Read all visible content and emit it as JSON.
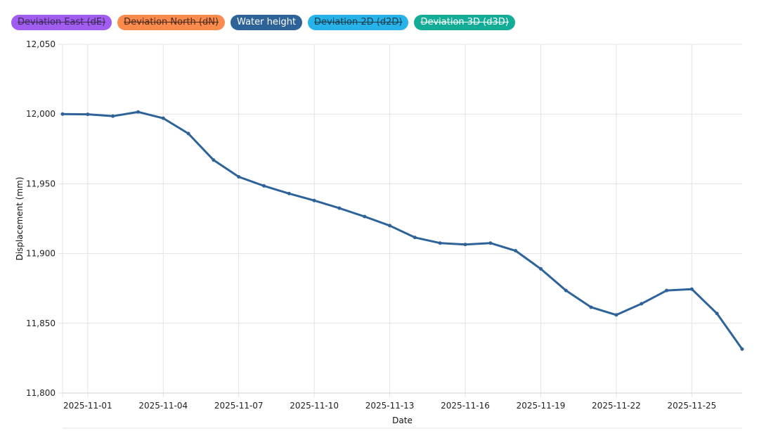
{
  "legend": [
    {
      "label": "Deviation East (dE)",
      "color": "#a15cf0",
      "text": "#3a2a55",
      "hidden": true
    },
    {
      "label": "Deviation North (dN)",
      "color": "#fb8a4d",
      "text": "#4a2a1a",
      "hidden": true
    },
    {
      "label": "Water height",
      "color": "#2e6399",
      "text": "#ffffff",
      "hidden": false
    },
    {
      "label": "Deviation 2D (d2D)",
      "color": "#27b3ea",
      "text": "#1a3a4a",
      "hidden": true
    },
    {
      "label": "Deviation 3D (d3D)",
      "color": "#13ac97",
      "text": "#ffffff",
      "hidden": true
    }
  ],
  "chart_data": {
    "type": "line",
    "xlabel": "Date",
    "ylabel": "Displacement (mm)",
    "ylim": [
      11800,
      12050
    ],
    "yticks": [
      "11,800",
      "11,850",
      "11,900",
      "11,950",
      "12,000",
      "12,050"
    ],
    "xrange": [
      "2025-10-31",
      "2025-11-27"
    ],
    "xticks": [
      "2025-11-01",
      "2025-11-04",
      "2025-11-07",
      "2025-11-10",
      "2025-11-13",
      "2025-11-16",
      "2025-11-19",
      "2025-11-22",
      "2025-11-25"
    ],
    "grid": true,
    "legend_position": "top-left",
    "series": [
      {
        "name": "Water height",
        "color": "#2e6399",
        "x": [
          "2025-10-31",
          "2025-11-01",
          "2025-11-02",
          "2025-11-03",
          "2025-11-04",
          "2025-11-05",
          "2025-11-06",
          "2025-11-07",
          "2025-11-08",
          "2025-11-09",
          "2025-11-10",
          "2025-11-11",
          "2025-11-12",
          "2025-11-13",
          "2025-11-14",
          "2025-11-15",
          "2025-11-16",
          "2025-11-17",
          "2025-11-18",
          "2025-11-19",
          "2025-11-20",
          "2025-11-21",
          "2025-11-22",
          "2025-11-23",
          "2025-11-24",
          "2025-11-25",
          "2025-11-26",
          "2025-11-27"
        ],
        "values": [
          12000,
          11999.8,
          11998.5,
          12001.5,
          11997,
          11986,
          11967,
          11955,
          11948.5,
          11943,
          11938,
          11932.5,
          11926.5,
          11920,
          11911.5,
          11907.5,
          11906.5,
          11907.5,
          11902,
          11889,
          11873.5,
          11861.5,
          11856,
          11864,
          11873.5,
          11874.5,
          11857,
          11831.5
        ]
      }
    ]
  }
}
